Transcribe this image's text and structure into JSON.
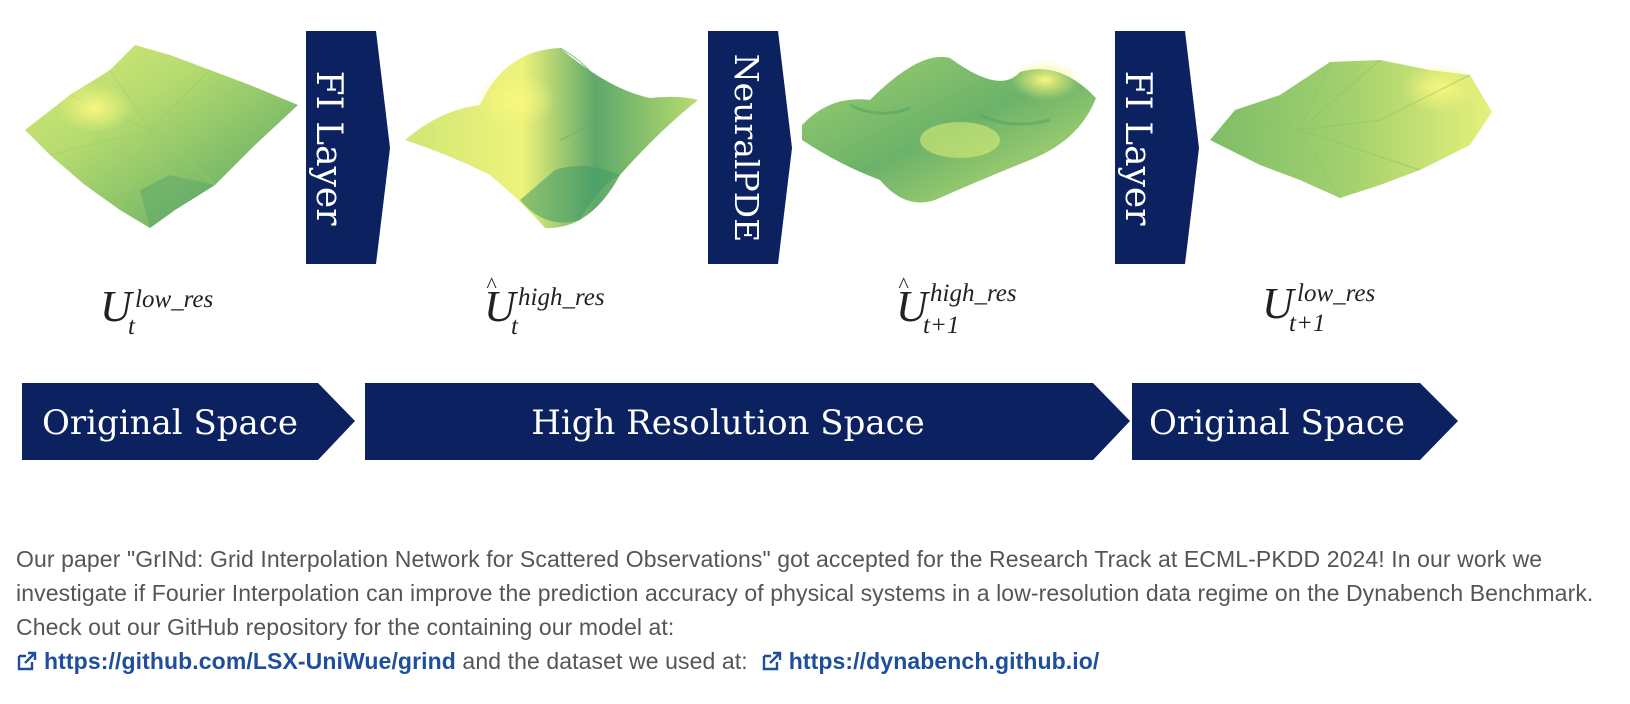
{
  "diagram": {
    "colors": {
      "navy": "#0b2160",
      "surface_light": "#e8f27c",
      "surface_mid": "#a9d36e",
      "surface_dark": "#3f9a66"
    },
    "layers": [
      {
        "label": "FI Layer"
      },
      {
        "label": "NeuralPDE"
      },
      {
        "label": "FI Layer"
      }
    ],
    "states": [
      {
        "base": "U",
        "hat": false,
        "sub": "t",
        "sup": "low_res"
      },
      {
        "base": "U",
        "hat": true,
        "sub": "t",
        "sup": "high_res"
      },
      {
        "base": "U",
        "hat": true,
        "sub": "t+1",
        "sup": "high_res"
      },
      {
        "base": "U",
        "hat": false,
        "sub": "t+1",
        "sup": "low_res"
      }
    ],
    "spaces": [
      {
        "label": "Original Space"
      },
      {
        "label": "High Resolution Space"
      },
      {
        "label": "Original Space"
      }
    ]
  },
  "caption": {
    "text_1": "Our paper \"GrINd: Grid Interpolation Network for Scattered Observations\" got accepted for the Research Track at ECML-PKDD 2024! In our work we investigate if Fourier Interpolation can improve the prediction accuracy of physical systems in a low-resolution data regime on the Dynabench Benchmark. Check out our GitHub repository for the containing our model at:",
    "link_1": "https://github.com/LSX-UniWue/grind",
    "text_2": "and the dataset we used at:",
    "link_2": "https://dynabench.github.io/",
    "link_icon": "external-link-icon"
  }
}
